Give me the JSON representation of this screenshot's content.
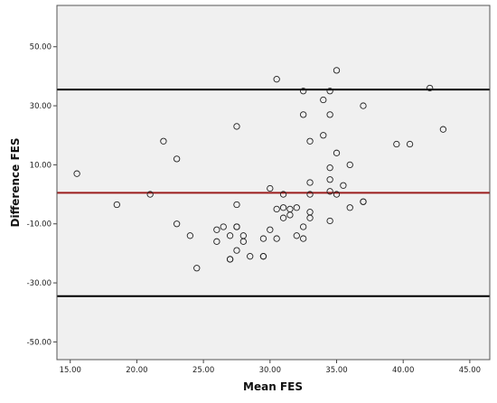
{
  "chart_data": {
    "type": "scatter",
    "xlabel": "Mean FES",
    "ylabel": "Difference FES",
    "xlim": [
      14,
      46.5
    ],
    "ylim": [
      -56,
      64
    ],
    "x_ticks": [
      "15.00",
      "20.00",
      "25.00",
      "30.00",
      "35.00",
      "40.00",
      "45.00"
    ],
    "x_tick_values": [
      15,
      20,
      25,
      30,
      35,
      40,
      45
    ],
    "y_ticks": [
      "50.00",
      "30.00",
      "10.00",
      "-10.00",
      "-30.00",
      "-50.00"
    ],
    "y_tick_values": [
      50,
      30,
      10,
      -10,
      -30,
      -50
    ],
    "grid": false,
    "reference_lines": [
      {
        "y": 35.5,
        "color": "#000000",
        "kind": "upper limit of agreement"
      },
      {
        "y": 0.5,
        "color": "#9b1c1c",
        "kind": "mean difference"
      },
      {
        "y": -34.5,
        "color": "#000000",
        "kind": "lower limit of agreement"
      }
    ],
    "points": [
      {
        "x": 15.5,
        "y": 7
      },
      {
        "x": 18.5,
        "y": -3.5
      },
      {
        "x": 21,
        "y": 0
      },
      {
        "x": 22,
        "y": 18
      },
      {
        "x": 23,
        "y": 12
      },
      {
        "x": 23,
        "y": -10
      },
      {
        "x": 24,
        "y": -14
      },
      {
        "x": 24.5,
        "y": -25
      },
      {
        "x": 26,
        "y": -12
      },
      {
        "x": 26,
        "y": -16
      },
      {
        "x": 26.5,
        "y": -11
      },
      {
        "x": 27,
        "y": -14
      },
      {
        "x": 27,
        "y": -22
      },
      {
        "x": 27,
        "y": -22
      },
      {
        "x": 27.5,
        "y": -11
      },
      {
        "x": 27.5,
        "y": -11
      },
      {
        "x": 27.5,
        "y": -19
      },
      {
        "x": 27.5,
        "y": -3.5
      },
      {
        "x": 27.5,
        "y": 23
      },
      {
        "x": 28,
        "y": -14
      },
      {
        "x": 28,
        "y": -16
      },
      {
        "x": 28.5,
        "y": -21
      },
      {
        "x": 29.5,
        "y": -15
      },
      {
        "x": 29.5,
        "y": -21
      },
      {
        "x": 29.5,
        "y": -21
      },
      {
        "x": 30,
        "y": -12
      },
      {
        "x": 30,
        "y": 2
      },
      {
        "x": 30.5,
        "y": -5
      },
      {
        "x": 30.5,
        "y": -15
      },
      {
        "x": 30.5,
        "y": 39
      },
      {
        "x": 31,
        "y": -4.5
      },
      {
        "x": 31,
        "y": -8
      },
      {
        "x": 31,
        "y": 0
      },
      {
        "x": 31.5,
        "y": -5
      },
      {
        "x": 31.5,
        "y": -7
      },
      {
        "x": 32,
        "y": -4.5
      },
      {
        "x": 32,
        "y": -14
      },
      {
        "x": 32.5,
        "y": -11
      },
      {
        "x": 32.5,
        "y": -15
      },
      {
        "x": 32.5,
        "y": 27
      },
      {
        "x": 32.5,
        "y": 35
      },
      {
        "x": 33,
        "y": 4
      },
      {
        "x": 33,
        "y": 0
      },
      {
        "x": 33,
        "y": -6
      },
      {
        "x": 33,
        "y": -8
      },
      {
        "x": 33,
        "y": 18
      },
      {
        "x": 34,
        "y": 32
      },
      {
        "x": 34,
        "y": 20
      },
      {
        "x": 34.5,
        "y": 35
      },
      {
        "x": 34.5,
        "y": 27
      },
      {
        "x": 34.5,
        "y": 9
      },
      {
        "x": 34.5,
        "y": 5
      },
      {
        "x": 34.5,
        "y": 1
      },
      {
        "x": 34.5,
        "y": -9
      },
      {
        "x": 35,
        "y": 42
      },
      {
        "x": 35,
        "y": 14
      },
      {
        "x": 35,
        "y": 0
      },
      {
        "x": 35.5,
        "y": 3
      },
      {
        "x": 36,
        "y": 10
      },
      {
        "x": 36,
        "y": -4.5
      },
      {
        "x": 37,
        "y": 30
      },
      {
        "x": 37,
        "y": -2.5
      },
      {
        "x": 37,
        "y": -2.5
      },
      {
        "x": 39.5,
        "y": 17
      },
      {
        "x": 40.5,
        "y": 17
      },
      {
        "x": 42,
        "y": 36
      },
      {
        "x": 43,
        "y": 22
      }
    ]
  }
}
